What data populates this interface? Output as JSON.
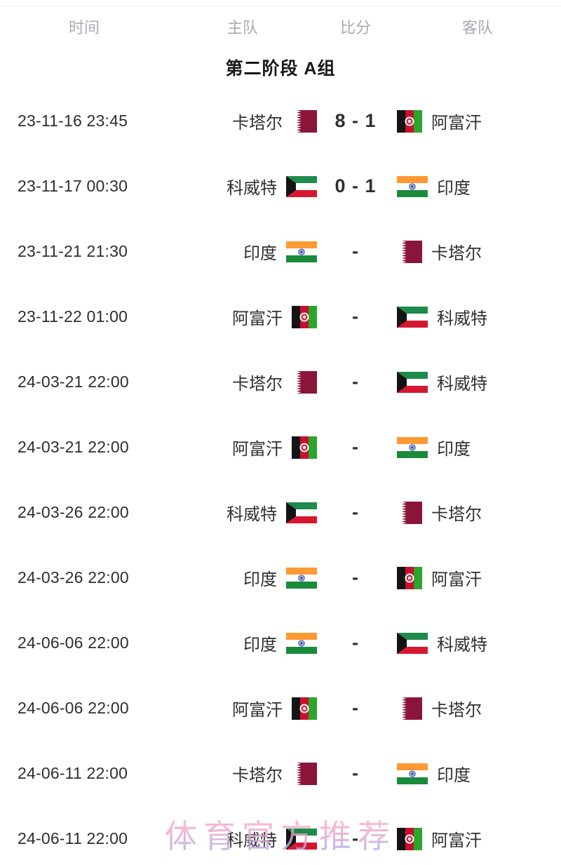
{
  "headers": {
    "time": "时间",
    "home": "主队",
    "score": "比分",
    "away": "客队"
  },
  "group_title": "第二阶段 A组",
  "watermark": "体育官方推荐",
  "matches": [
    {
      "time": "23-11-16 23:45",
      "home": "卡塔尔",
      "home_flag": "qatar",
      "score": "8 - 1",
      "away": "阿富汗",
      "away_flag": "afghanistan"
    },
    {
      "time": "23-11-17 00:30",
      "home": "科威特",
      "home_flag": "kuwait",
      "score": "0 - 1",
      "away": "印度",
      "away_flag": "india"
    },
    {
      "time": "23-11-21 21:30",
      "home": "印度",
      "home_flag": "india",
      "score": "-",
      "away": "卡塔尔",
      "away_flag": "qatar"
    },
    {
      "time": "23-11-22 01:00",
      "home": "阿富汗",
      "home_flag": "afghanistan",
      "score": "-",
      "away": "科威特",
      "away_flag": "kuwait"
    },
    {
      "time": "24-03-21 22:00",
      "home": "卡塔尔",
      "home_flag": "qatar",
      "score": "-",
      "away": "科威特",
      "away_flag": "kuwait"
    },
    {
      "time": "24-03-21 22:00",
      "home": "阿富汗",
      "home_flag": "afghanistan",
      "score": "-",
      "away": "印度",
      "away_flag": "india"
    },
    {
      "time": "24-03-26 22:00",
      "home": "科威特",
      "home_flag": "kuwait",
      "score": "-",
      "away": "卡塔尔",
      "away_flag": "qatar"
    },
    {
      "time": "24-03-26 22:00",
      "home": "印度",
      "home_flag": "india",
      "score": "-",
      "away": "阿富汗",
      "away_flag": "afghanistan"
    },
    {
      "time": "24-06-06 22:00",
      "home": "印度",
      "home_flag": "india",
      "score": "-",
      "away": "科威特",
      "away_flag": "kuwait"
    },
    {
      "time": "24-06-06 22:00",
      "home": "阿富汗",
      "home_flag": "afghanistan",
      "score": "-",
      "away": "卡塔尔",
      "away_flag": "qatar"
    },
    {
      "time": "24-06-11 22:00",
      "home": "卡塔尔",
      "home_flag": "qatar",
      "score": "-",
      "away": "印度",
      "away_flag": "india"
    },
    {
      "time": "24-06-11 22:00",
      "home": "科威特",
      "home_flag": "kuwait",
      "score": "-",
      "away": "阿富汗",
      "away_flag": "afghanistan"
    }
  ],
  "colors": {
    "header_text": "#a6abb1",
    "body_text": "#2e3033",
    "title_text": "#17181a",
    "watermark_pink": "#f098c6"
  },
  "flag_colors": {
    "qatar": {
      "maroon": "#8A1538",
      "white": "#FFFFFF"
    },
    "kuwait": {
      "green": "#1E8A4C",
      "white": "#FFFFFF",
      "red": "#D7172F",
      "black": "#141414"
    },
    "india": {
      "saffron": "#FF9933",
      "white": "#FFFFFF",
      "green": "#1A8A3B",
      "navy": "#2643A8"
    },
    "afghanistan": {
      "black": "#141414",
      "red": "#C8102E",
      "green": "#2BA52B",
      "white": "#FFFFFF"
    }
  }
}
